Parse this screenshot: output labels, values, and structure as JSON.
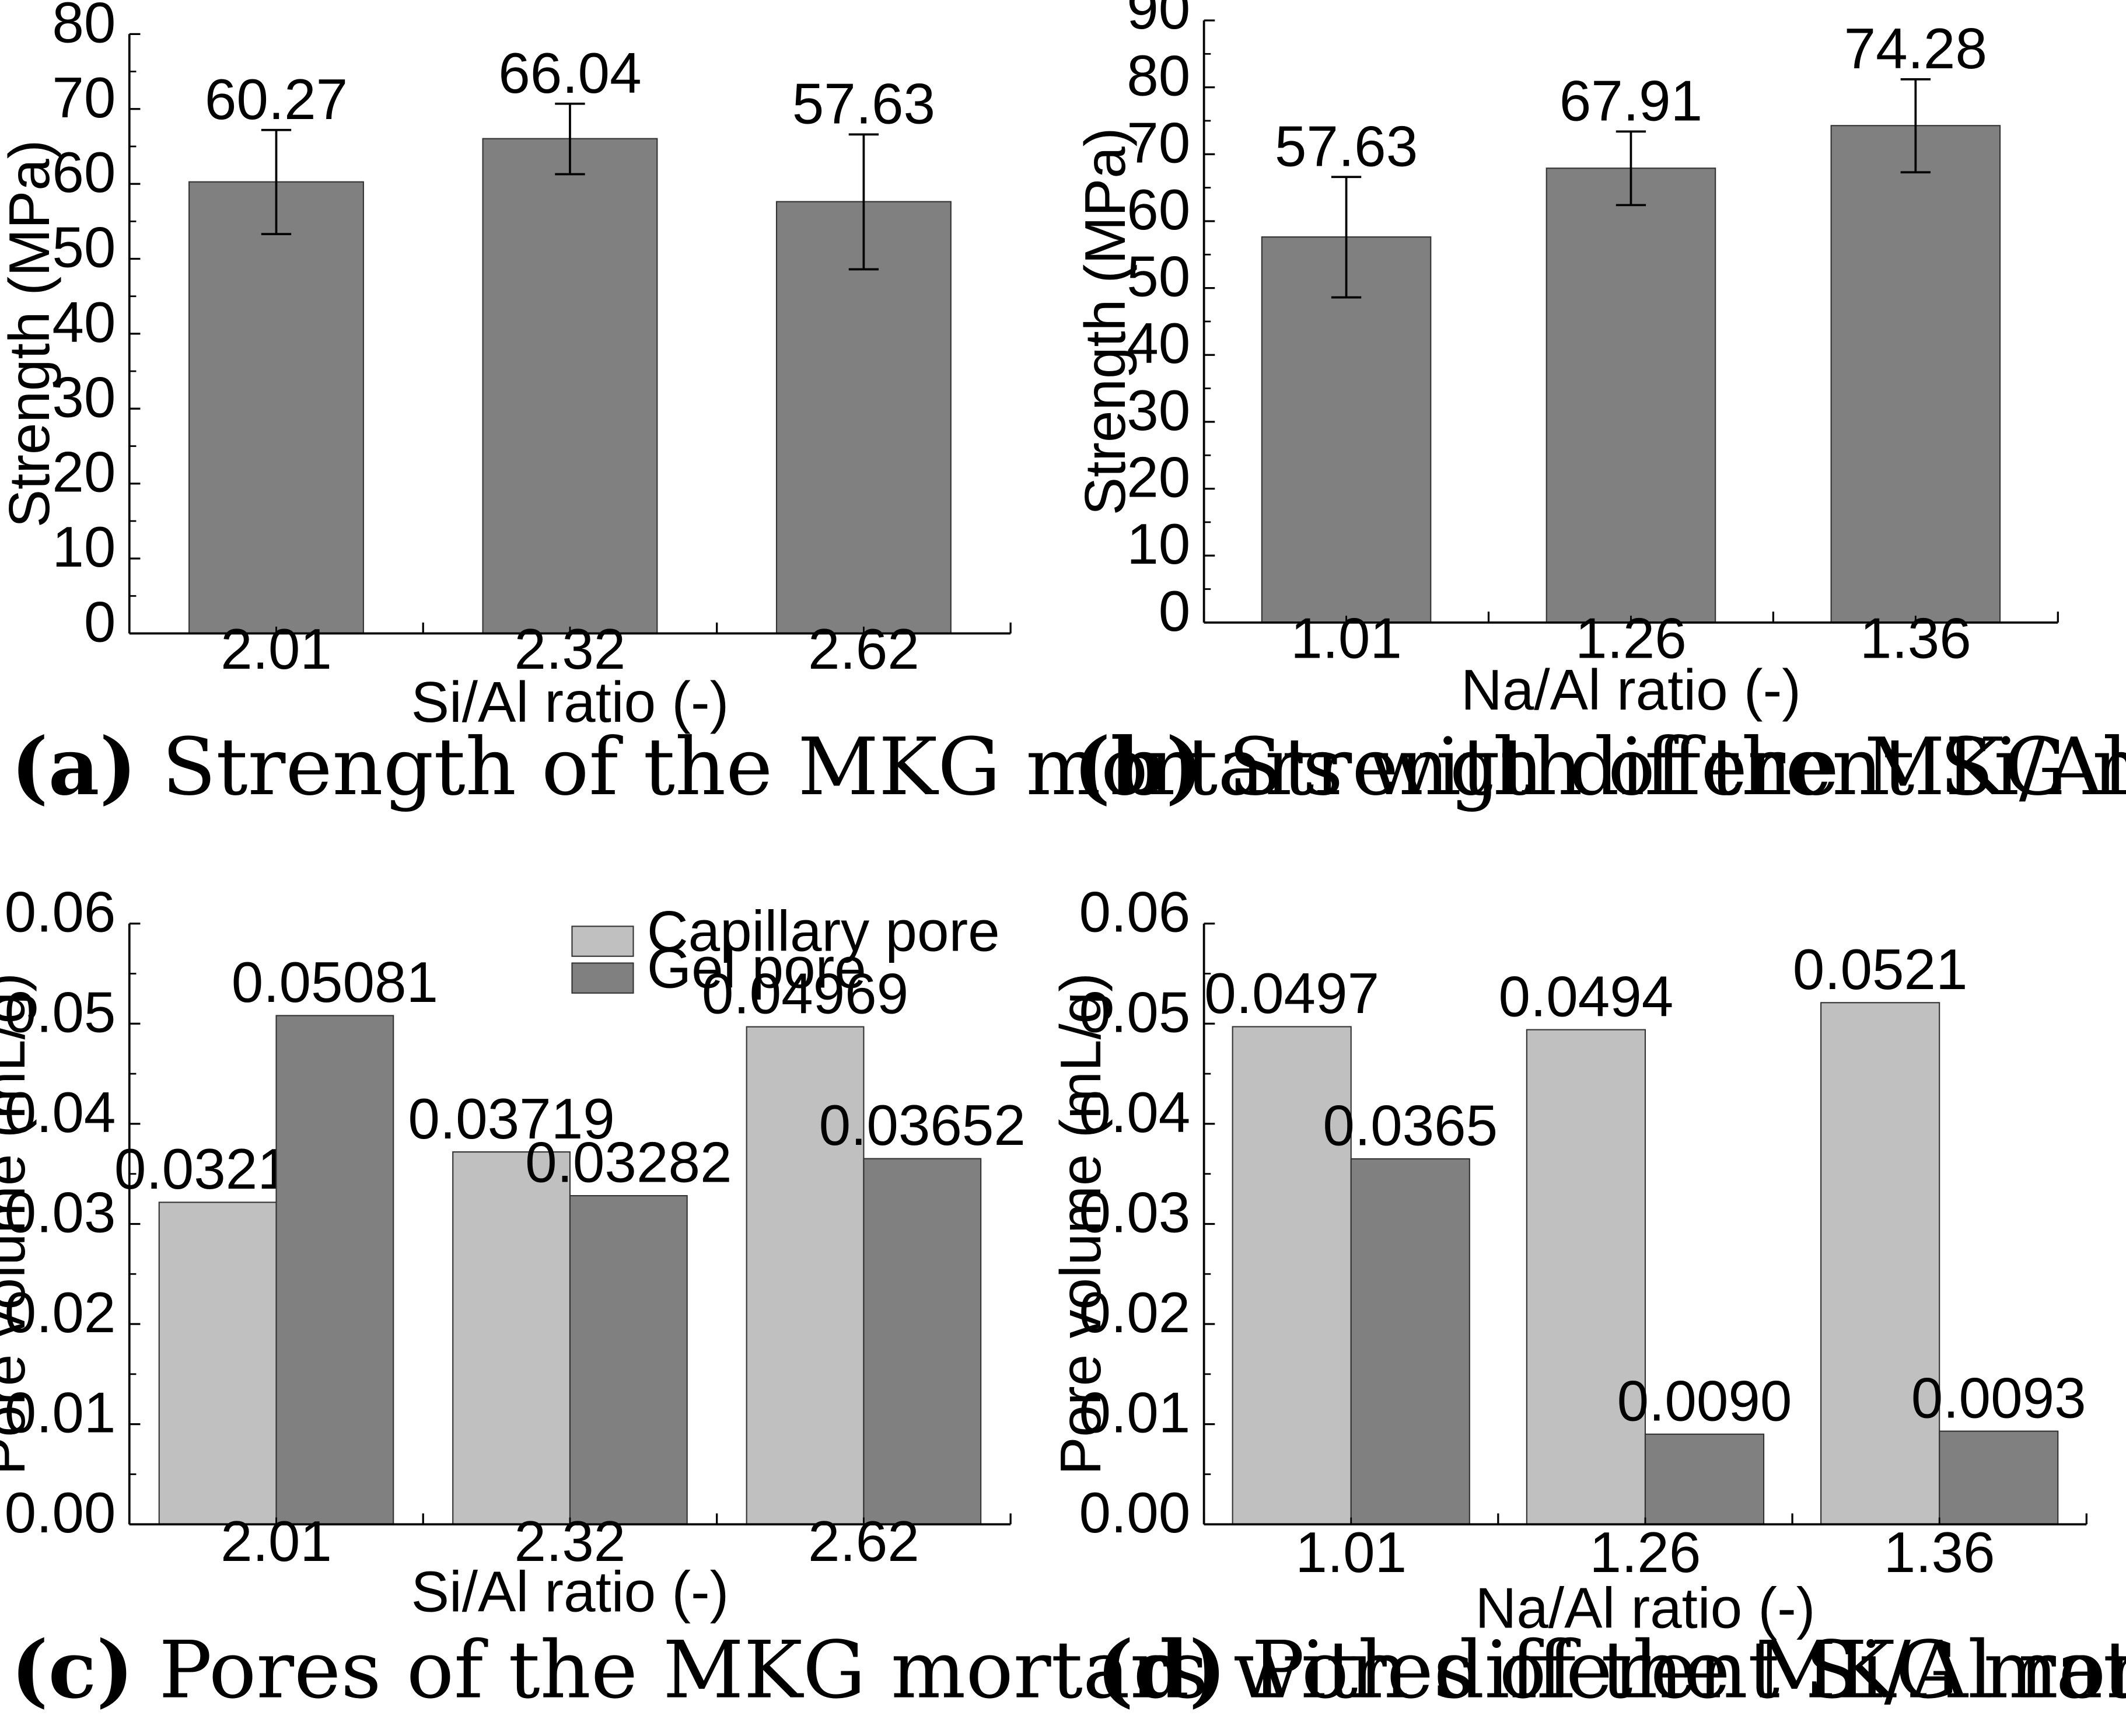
{
  "colors": {
    "capillary": "#c0c0c0",
    "gel": "#808080",
    "single": "#808080",
    "axis": "#000000"
  },
  "chart_data": [
    {
      "id": "a",
      "type": "bar",
      "categories": [
        "2.01",
        "2.32",
        "2.62"
      ],
      "series": [
        {
          "name": "Strength",
          "values": [
            60.27,
            66.04,
            57.63
          ],
          "error_low": [
            53.3,
            61.3,
            48.6
          ],
          "error_high": [
            67.2,
            70.7,
            66.6
          ],
          "labels": [
            "60.27",
            "66.04",
            "57.63"
          ]
        }
      ],
      "xlabel": "Si/Al ratio (-)",
      "ylabel": "Strength (MPa)",
      "ylim": [
        0,
        80
      ],
      "yticks": [
        "0",
        "10",
        "20",
        "30",
        "40",
        "50",
        "60",
        "70",
        "80"
      ],
      "caption_letter": "(a)",
      "caption_text": "Strength of the MKG mortars with different Si/Al ratios"
    },
    {
      "id": "b",
      "type": "bar",
      "categories": [
        "1.01",
        "1.26",
        "1.36"
      ],
      "series": [
        {
          "name": "Strength",
          "values": [
            57.63,
            67.91,
            74.28
          ],
          "error_low": [
            48.6,
            62.4,
            67.3
          ],
          "error_high": [
            66.6,
            73.4,
            81.2
          ],
          "labels": [
            "57.63",
            "67.91",
            "74.28"
          ]
        }
      ],
      "xlabel": "Na/Al ratio (-)",
      "ylabel": "Strength (MPa)",
      "ylim": [
        0,
        90
      ],
      "yticks": [
        "0",
        "10",
        "20",
        "30",
        "40",
        "50",
        "60",
        "70",
        "80",
        "90"
      ],
      "caption_letter": "(b)",
      "caption_text": "Strength of the MKG mortars with different Na/Al ratios"
    },
    {
      "id": "c",
      "type": "bar",
      "categories": [
        "2.01",
        "2.32",
        "2.62"
      ],
      "series": [
        {
          "name": "Capillary pore",
          "values": [
            0.03216,
            0.03719,
            0.04969
          ],
          "labels": [
            "0.03216",
            "0.03719",
            "0.04969"
          ]
        },
        {
          "name": "Gel pore",
          "values": [
            0.05081,
            0.03282,
            0.03652
          ],
          "labels": [
            "0.05081",
            "0.03282",
            "0.03652"
          ]
        }
      ],
      "legend": [
        "Capillary pore",
        "Gel pore"
      ],
      "legend_position": "top-center",
      "xlabel": "Si/Al ratio (-)",
      "ylabel": "Pore volume (mL/g)",
      "ylim": [
        0,
        0.06
      ],
      "yticks": [
        "0.00",
        "0.01",
        "0.02",
        "0.03",
        "0.04",
        "0.05",
        "0.06"
      ],
      "caption_letter": "(c)",
      "caption_text": "Pores of the MKG mortars with different Si/Al ratios"
    },
    {
      "id": "d",
      "type": "bar",
      "categories": [
        "1.01",
        "1.26",
        "1.36"
      ],
      "series": [
        {
          "name": "Capillary pore",
          "values": [
            0.0497,
            0.0494,
            0.0521
          ],
          "labels": [
            "0.0497",
            "0.0494",
            "0.0521"
          ]
        },
        {
          "name": "Gel pore",
          "values": [
            0.0365,
            0.009,
            0.0093
          ],
          "labels": [
            "0.0365",
            "0.0090",
            "0.0093"
          ]
        }
      ],
      "xlabel": "Na/Al ratio (-)",
      "ylabel": "Pore volume (mL/g)",
      "ylim": [
        0,
        0.06
      ],
      "yticks": [
        "0.00",
        "0.01",
        "0.02",
        "0.03",
        "0.04",
        "0.05",
        "0.06"
      ],
      "caption_letter": "(d)",
      "caption_text": "Pores of the MKG mortars with different Na/Al ratios"
    }
  ]
}
